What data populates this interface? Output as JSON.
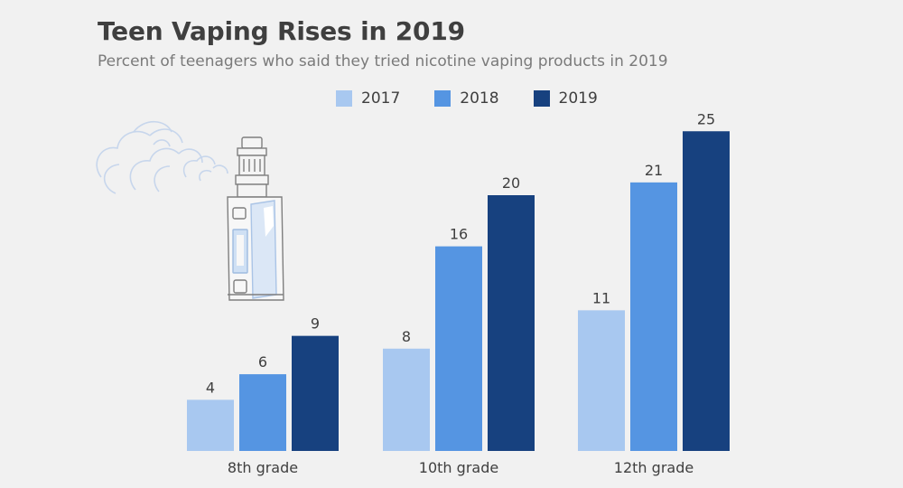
{
  "chart_data": {
    "type": "bar",
    "title": "Teen Vaping Rises in 2019",
    "subtitle": "Percent of teenagers who said they tried nicotine vaping products in 2019",
    "categories": [
      "8th grade",
      "10th grade",
      "12th grade"
    ],
    "series": [
      {
        "name": "2017",
        "color": "#a8c8f0",
        "values": [
          4,
          8,
          11
        ]
      },
      {
        "name": "2018",
        "color": "#5595e2",
        "values": [
          6,
          16,
          21
        ]
      },
      {
        "name": "2019",
        "color": "#17417f",
        "values": [
          9,
          20,
          25
        ]
      }
    ],
    "ylim": [
      0,
      25
    ],
    "grid": false,
    "legend_position": "top",
    "illustration": "vape-device-icon"
  }
}
